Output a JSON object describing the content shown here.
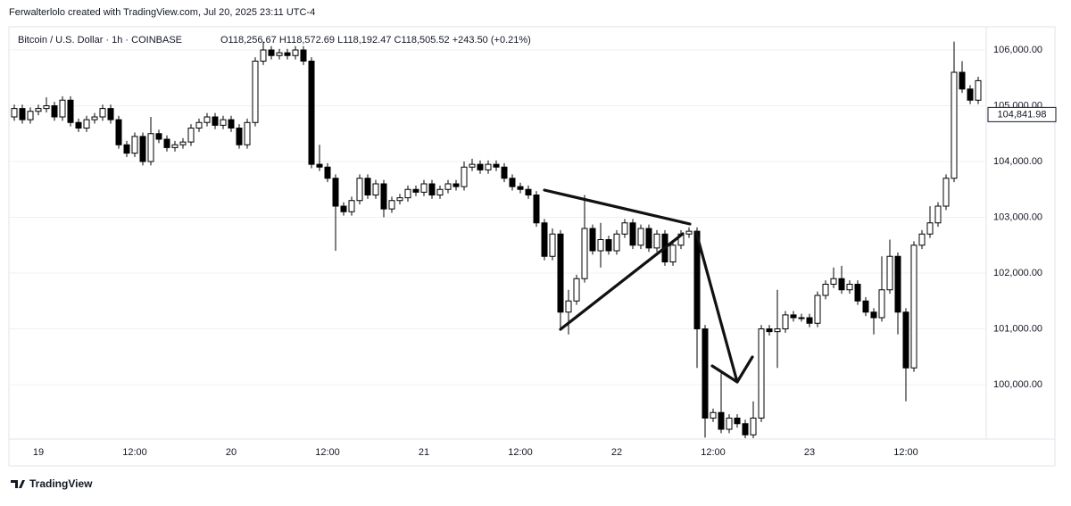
{
  "header": "Ferwalterlolo created with TradingView.com, Jul 20, 2025 23:11 UTC-4",
  "footer": "TradingView",
  "chart_data": {
    "type": "candlestick",
    "symbol": "Bitcoin / U.S. Dollar · 1h · COINBASE",
    "ohlc_label": "O118,256.67  H118,572.69  L118,192.47  C118,505.52  +243.50 (+0.21%)",
    "categories": [
      null,
      null,
      null,
      "19",
      null,
      null,
      null,
      null,
      null,
      null,
      null,
      null,
      null,
      null,
      null,
      "12:00",
      null,
      null,
      null,
      null,
      null,
      null,
      null,
      null,
      null,
      null,
      null,
      "20",
      null,
      null,
      null,
      null,
      null,
      null,
      null,
      null,
      null,
      null,
      null,
      "12:00",
      null,
      null,
      null,
      null,
      null,
      null,
      null,
      null,
      null,
      null,
      null,
      "21",
      null,
      null,
      null,
      null,
      null,
      null,
      null,
      null,
      null,
      null,
      null,
      "12:00",
      null,
      null,
      null,
      null,
      null,
      null,
      null,
      null,
      null,
      null,
      null,
      "22",
      null,
      null,
      null,
      null,
      null,
      null,
      null,
      null,
      null,
      null,
      null,
      "12:00",
      null,
      null,
      null,
      null,
      null,
      null,
      null,
      null,
      null,
      null,
      null,
      "23",
      null,
      null,
      null,
      null,
      null,
      null,
      null,
      null,
      null,
      null,
      null,
      "12:00",
      null,
      null,
      null,
      null,
      null,
      null,
      null,
      null,
      null
    ],
    "open": [
      104800,
      104950,
      104750,
      104900,
      104950,
      105000,
      104800,
      105100,
      104700,
      104600,
      104750,
      104800,
      104950,
      104750,
      104300,
      104150,
      104450,
      104000,
      104500,
      104400,
      104250,
      104300,
      104350,
      104600,
      104700,
      104800,
      104650,
      104750,
      104600,
      104300,
      104700,
      105800,
      106000,
      105900,
      105950,
      105900,
      106000,
      105800,
      103950,
      103900,
      103700,
      103200,
      103100,
      103300,
      103700,
      103400,
      103600,
      103150,
      103300,
      103350,
      103500,
      103450,
      103600,
      103400,
      103500,
      103600,
      103550,
      103900,
      103950,
      103850,
      103950,
      103900,
      103700,
      103550,
      103500,
      103400,
      102900,
      102300,
      102700,
      101300,
      101500,
      101900,
      102800,
      102400,
      102600,
      102400,
      102700,
      102900,
      102500,
      102800,
      102450,
      102700,
      102200,
      102500,
      102700,
      102750,
      101000,
      99400,
      99500,
      99200,
      99400,
      99300,
      99100,
      99400,
      101000,
      100950,
      101000,
      101250,
      101200,
      101200,
      101100,
      101600,
      101800,
      101900,
      101700,
      101800,
      101500,
      101300,
      101200,
      101700,
      102300,
      101300,
      100300,
      102500,
      102700,
      102900,
      103200,
      103700,
      105600,
      105300,
      105100
    ],
    "high": [
      105020,
      105020,
      104970,
      105020,
      105150,
      105070,
      105170,
      105170,
      104770,
      104820,
      104870,
      105020,
      105020,
      104820,
      104370,
      104520,
      104520,
      104800,
      104570,
      104470,
      104370,
      104420,
      104670,
      104770,
      104870,
      104870,
      104820,
      104820,
      104670,
      104770,
      105870,
      106150,
      106070,
      106020,
      106020,
      106070,
      106070,
      105870,
      104300,
      103970,
      103770,
      103270,
      103370,
      103770,
      103770,
      103670,
      103670,
      103370,
      103420,
      103570,
      103570,
      103670,
      103670,
      103570,
      103670,
      103670,
      104000,
      104050,
      104020,
      104020,
      104020,
      103970,
      103770,
      103620,
      103570,
      103470,
      102970,
      102800,
      102770,
      101700,
      101970,
      103400,
      102870,
      102900,
      102670,
      102770,
      102970,
      102970,
      102870,
      102870,
      102770,
      102770,
      102570,
      102770,
      102820,
      102820,
      101070,
      99570,
      100200,
      99470,
      99470,
      99370,
      99700,
      101070,
      101070,
      101700,
      101320,
      101320,
      101270,
      101270,
      101670,
      101870,
      102100,
      102130,
      101870,
      101870,
      101570,
      101370,
      102300,
      102600,
      102370,
      101370,
      102570,
      102770,
      103200,
      103270,
      103770,
      106150,
      105800,
      105370,
      105520
    ],
    "low": [
      104730,
      104680,
      104680,
      104830,
      104880,
      104730,
      104730,
      104630,
      104530,
      104530,
      104680,
      104730,
      104680,
      104230,
      104080,
      104080,
      103930,
      103930,
      104330,
      104180,
      104180,
      104230,
      104280,
      104530,
      104630,
      104580,
      104580,
      104530,
      104230,
      104230,
      104630,
      105730,
      105830,
      105830,
      105830,
      105830,
      105730,
      103880,
      103830,
      103630,
      102400,
      103030,
      103030,
      103230,
      103330,
      103330,
      103000,
      103080,
      103230,
      103280,
      103380,
      103380,
      103330,
      103330,
      103430,
      103480,
      103480,
      103830,
      103780,
      103780,
      103830,
      103630,
      103480,
      103430,
      103330,
      102830,
      102230,
      102230,
      101000,
      100900,
      101430,
      101830,
      102330,
      102100,
      102330,
      102330,
      102630,
      102430,
      102430,
      102380,
      102380,
      102130,
      102130,
      102430,
      102630,
      100300,
      99050,
      99330,
      99130,
      99130,
      99230,
      99040,
      99040,
      99330,
      100880,
      100300,
      100930,
      101130,
      101130,
      101030,
      101030,
      101530,
      101730,
      101630,
      101630,
      101430,
      101230,
      100900,
      101130,
      101630,
      100900,
      99700,
      100230,
      102430,
      102630,
      102830,
      103130,
      103630,
      105230,
      105030,
      105030
    ],
    "close": [
      104950,
      104750,
      104900,
      104950,
      105000,
      104800,
      105100,
      104700,
      104600,
      104750,
      104800,
      104950,
      104750,
      104300,
      104150,
      104450,
      104000,
      104500,
      104400,
      104250,
      104300,
      104350,
      104600,
      104700,
      104800,
      104650,
      104750,
      104600,
      104300,
      104700,
      105800,
      106000,
      105900,
      105950,
      105900,
      106000,
      105800,
      103950,
      103900,
      103700,
      103200,
      103100,
      103300,
      103700,
      103400,
      103600,
      103150,
      103300,
      103350,
      103500,
      103450,
      103600,
      103400,
      103500,
      103600,
      103550,
      103900,
      103950,
      103850,
      103950,
      103900,
      103700,
      103550,
      103500,
      103400,
      102900,
      102300,
      102700,
      101300,
      101500,
      101900,
      102800,
      102400,
      102600,
      102400,
      102700,
      102900,
      102500,
      102800,
      102450,
      102700,
      102200,
      102500,
      102700,
      102750,
      101000,
      99400,
      99500,
      99200,
      99400,
      99300,
      99100,
      99400,
      101000,
      100950,
      101000,
      101250,
      101200,
      101200,
      101100,
      101600,
      101800,
      101900,
      101700,
      101800,
      101500,
      101300,
      101200,
      101700,
      102300,
      101300,
      100300,
      102500,
      102700,
      102900,
      103200,
      103700,
      105600,
      105300,
      105100,
      105450
    ],
    "up_color": "#ffffff",
    "down_color": "#000000",
    "wick_color": "#000000",
    "ylim": [
      99024,
      106288
    ],
    "yticks": [
      {
        "value": 100000,
        "label": "100,000.00"
      },
      {
        "value": 101000,
        "label": "101,000.00"
      },
      {
        "value": 102000,
        "label": "102,000.00"
      },
      {
        "value": 103000,
        "label": "103,000.00"
      },
      {
        "value": 104000,
        "label": "104,000.00"
      },
      {
        "value": 105000,
        "label": "105,000.00"
      },
      {
        "value": 106000,
        "label": "106,000.00"
      }
    ],
    "last_price": {
      "value": 104841.98,
      "label": "104,841.98"
    },
    "grid": true
  }
}
